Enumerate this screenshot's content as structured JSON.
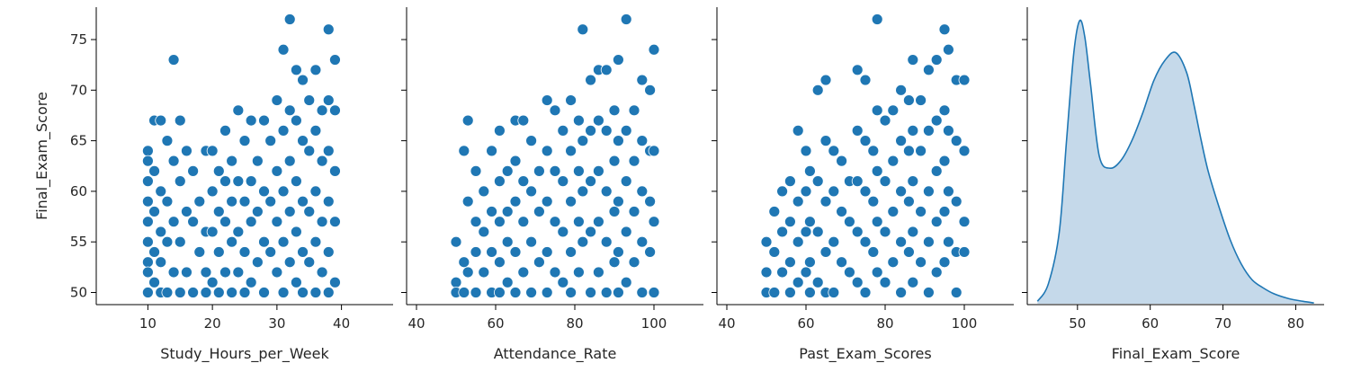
{
  "chart_data": [
    {
      "type": "scatter",
      "xlabel": "Study_Hours_per_Week",
      "ylabel": "Final_Exam_Score",
      "xlim": [
        2,
        48
      ],
      "ylim": [
        48.8,
        78.2
      ],
      "x_ticks": [
        10,
        20,
        30,
        40
      ],
      "y_ticks": [
        50,
        55,
        60,
        65,
        70,
        75
      ],
      "color": "#1f77b4",
      "points": [
        [
          10,
          64
        ],
        [
          10,
          63
        ],
        [
          10,
          61
        ],
        [
          10,
          59
        ],
        [
          10,
          57
        ],
        [
          10,
          55
        ],
        [
          10,
          53
        ],
        [
          10,
          52
        ],
        [
          10,
          50
        ],
        [
          11,
          67
        ],
        [
          11,
          62
        ],
        [
          11,
          58
        ],
        [
          11,
          54
        ],
        [
          11,
          51
        ],
        [
          12,
          67
        ],
        [
          12,
          60
        ],
        [
          12,
          56
        ],
        [
          12,
          53
        ],
        [
          12,
          50
        ],
        [
          13,
          65
        ],
        [
          13,
          59
        ],
        [
          13,
          55
        ],
        [
          13,
          50
        ],
        [
          14,
          73
        ],
        [
          14,
          63
        ],
        [
          14,
          57
        ],
        [
          14,
          52
        ],
        [
          15,
          67
        ],
        [
          15,
          61
        ],
        [
          15,
          55
        ],
        [
          15,
          50
        ],
        [
          16,
          64
        ],
        [
          16,
          58
        ],
        [
          16,
          52
        ],
        [
          17,
          62
        ],
        [
          17,
          57
        ],
        [
          17,
          50
        ],
        [
          18,
          59
        ],
        [
          18,
          54
        ],
        [
          19,
          64
        ],
        [
          19,
          56
        ],
        [
          19,
          52
        ],
        [
          19,
          50
        ],
        [
          20,
          64
        ],
        [
          20,
          60
        ],
        [
          20,
          56
        ],
        [
          20,
          51
        ],
        [
          21,
          62
        ],
        [
          21,
          58
        ],
        [
          21,
          54
        ],
        [
          21,
          50
        ],
        [
          22,
          66
        ],
        [
          22,
          61
        ],
        [
          22,
          57
        ],
        [
          22,
          52
        ],
        [
          23,
          63
        ],
        [
          23,
          59
        ],
        [
          23,
          55
        ],
        [
          23,
          50
        ],
        [
          24,
          68
        ],
        [
          24,
          61
        ],
        [
          24,
          56
        ],
        [
          24,
          52
        ],
        [
          25,
          65
        ],
        [
          25,
          59
        ],
        [
          25,
          54
        ],
        [
          25,
          50
        ],
        [
          26,
          67
        ],
        [
          26,
          61
        ],
        [
          26,
          57
        ],
        [
          26,
          51
        ],
        [
          27,
          63
        ],
        [
          27,
          58
        ],
        [
          27,
          53
        ],
        [
          28,
          67
        ],
        [
          28,
          60
        ],
        [
          28,
          55
        ],
        [
          28,
          50
        ],
        [
          29,
          65
        ],
        [
          29,
          59
        ],
        [
          29,
          54
        ],
        [
          30,
          69
        ],
        [
          30,
          62
        ],
        [
          30,
          57
        ],
        [
          30,
          52
        ],
        [
          31,
          74
        ],
        [
          31,
          66
        ],
        [
          31,
          60
        ],
        [
          31,
          55
        ],
        [
          31,
          50
        ],
        [
          32,
          77
        ],
        [
          32,
          68
        ],
        [
          32,
          63
        ],
        [
          32,
          58
        ],
        [
          32,
          53
        ],
        [
          33,
          72
        ],
        [
          33,
          67
        ],
        [
          33,
          61
        ],
        [
          33,
          56
        ],
        [
          33,
          51
        ],
        [
          34,
          71
        ],
        [
          34,
          65
        ],
        [
          34,
          59
        ],
        [
          34,
          54
        ],
        [
          34,
          50
        ],
        [
          35,
          69
        ],
        [
          35,
          64
        ],
        [
          35,
          58
        ],
        [
          35,
          53
        ],
        [
          36,
          72
        ],
        [
          36,
          66
        ],
        [
          36,
          60
        ],
        [
          36,
          55
        ],
        [
          36,
          50
        ],
        [
          37,
          68
        ],
        [
          37,
          63
        ],
        [
          37,
          57
        ],
        [
          37,
          52
        ],
        [
          38,
          76
        ],
        [
          38,
          69
        ],
        [
          38,
          64
        ],
        [
          38,
          59
        ],
        [
          38,
          54
        ],
        [
          38,
          50
        ],
        [
          39,
          73
        ],
        [
          39,
          68
        ],
        [
          39,
          62
        ],
        [
          39,
          57
        ],
        [
          39,
          51
        ]
      ]
    },
    {
      "type": "scatter",
      "xlabel": "Attendance_Rate",
      "xlim": [
        37.5,
        112.5
      ],
      "ylim": [
        48.8,
        78.2
      ],
      "x_ticks": [
        40,
        60,
        80,
        100
      ],
      "color": "#1f77b4",
      "points": [
        [
          50,
          55
        ],
        [
          50,
          51
        ],
        [
          50,
          50
        ],
        [
          52,
          64
        ],
        [
          52,
          53
        ],
        [
          52,
          50
        ],
        [
          53,
          67
        ],
        [
          53,
          59
        ],
        [
          53,
          52
        ],
        [
          55,
          62
        ],
        [
          55,
          57
        ],
        [
          55,
          54
        ],
        [
          55,
          50
        ],
        [
          57,
          60
        ],
        [
          57,
          56
        ],
        [
          57,
          52
        ],
        [
          59,
          64
        ],
        [
          59,
          58
        ],
        [
          59,
          54
        ],
        [
          59,
          50
        ],
        [
          61,
          66
        ],
        [
          61,
          61
        ],
        [
          61,
          57
        ],
        [
          61,
          53
        ],
        [
          61,
          50
        ],
        [
          63,
          62
        ],
        [
          63,
          58
        ],
        [
          63,
          55
        ],
        [
          63,
          51
        ],
        [
          65,
          67
        ],
        [
          65,
          63
        ],
        [
          65,
          59
        ],
        [
          65,
          54
        ],
        [
          65,
          50
        ],
        [
          67,
          67
        ],
        [
          67,
          61
        ],
        [
          67,
          57
        ],
        [
          67,
          52
        ],
        [
          69,
          65
        ],
        [
          69,
          60
        ],
        [
          69,
          55
        ],
        [
          69,
          50
        ],
        [
          71,
          62
        ],
        [
          71,
          58
        ],
        [
          71,
          53
        ],
        [
          73,
          69
        ],
        [
          73,
          64
        ],
        [
          73,
          59
        ],
        [
          73,
          54
        ],
        [
          73,
          50
        ],
        [
          75,
          68
        ],
        [
          75,
          62
        ],
        [
          75,
          57
        ],
        [
          75,
          52
        ],
        [
          77,
          66
        ],
        [
          77,
          61
        ],
        [
          77,
          56
        ],
        [
          77,
          51
        ],
        [
          79,
          69
        ],
        [
          79,
          64
        ],
        [
          79,
          59
        ],
        [
          79,
          54
        ],
        [
          79,
          50
        ],
        [
          81,
          67
        ],
        [
          81,
          62
        ],
        [
          81,
          57
        ],
        [
          81,
          52
        ],
        [
          82,
          76
        ],
        [
          82,
          65
        ],
        [
          82,
          60
        ],
        [
          82,
          55
        ],
        [
          84,
          71
        ],
        [
          84,
          66
        ],
        [
          84,
          61
        ],
        [
          84,
          56
        ],
        [
          84,
          50
        ],
        [
          86,
          72
        ],
        [
          86,
          67
        ],
        [
          86,
          62
        ],
        [
          86,
          57
        ],
        [
          86,
          52
        ],
        [
          88,
          72
        ],
        [
          88,
          66
        ],
        [
          88,
          60
        ],
        [
          88,
          55
        ],
        [
          88,
          50
        ],
        [
          90,
          68
        ],
        [
          90,
          63
        ],
        [
          90,
          58
        ],
        [
          90,
          53
        ],
        [
          91,
          73
        ],
        [
          91,
          65
        ],
        [
          91,
          59
        ],
        [
          91,
          54
        ],
        [
          91,
          50
        ],
        [
          93,
          77
        ],
        [
          93,
          66
        ],
        [
          93,
          61
        ],
        [
          93,
          56
        ],
        [
          93,
          51
        ],
        [
          95,
          68
        ],
        [
          95,
          63
        ],
        [
          95,
          58
        ],
        [
          95,
          53
        ],
        [
          97,
          71
        ],
        [
          97,
          65
        ],
        [
          97,
          60
        ],
        [
          97,
          55
        ],
        [
          97,
          50
        ],
        [
          99,
          70
        ],
        [
          99,
          64
        ],
        [
          99,
          59
        ],
        [
          99,
          54
        ],
        [
          100,
          74
        ],
        [
          100,
          64
        ],
        [
          100,
          57
        ],
        [
          100,
          50
        ]
      ]
    },
    {
      "type": "scatter",
      "xlabel": "Past_Exam_Scores",
      "xlim": [
        37.5,
        112.5
      ],
      "ylim": [
        48.8,
        78.2
      ],
      "x_ticks": [
        40,
        60,
        80,
        100
      ],
      "color": "#1f77b4",
      "points": [
        [
          50,
          55
        ],
        [
          50,
          52
        ],
        [
          50,
          50
        ],
        [
          52,
          58
        ],
        [
          52,
          54
        ],
        [
          52,
          50
        ],
        [
          54,
          60
        ],
        [
          54,
          56
        ],
        [
          54,
          52
        ],
        [
          56,
          61
        ],
        [
          56,
          57
        ],
        [
          56,
          53
        ],
        [
          56,
          50
        ],
        [
          58,
          66
        ],
        [
          58,
          59
        ],
        [
          58,
          55
        ],
        [
          58,
          51
        ],
        [
          60,
          64
        ],
        [
          60,
          60
        ],
        [
          60,
          56
        ],
        [
          60,
          52
        ],
        [
          61,
          62
        ],
        [
          61,
          57
        ],
        [
          61,
          53
        ],
        [
          61,
          50
        ],
        [
          63,
          70
        ],
        [
          63,
          61
        ],
        [
          63,
          56
        ],
        [
          63,
          51
        ],
        [
          65,
          71
        ],
        [
          65,
          65
        ],
        [
          65,
          59
        ],
        [
          65,
          54
        ],
        [
          65,
          50
        ],
        [
          67,
          64
        ],
        [
          67,
          60
        ],
        [
          67,
          55
        ],
        [
          67,
          50
        ],
        [
          69,
          63
        ],
        [
          69,
          58
        ],
        [
          69,
          53
        ],
        [
          71,
          61
        ],
        [
          71,
          57
        ],
        [
          71,
          52
        ],
        [
          73,
          72
        ],
        [
          73,
          66
        ],
        [
          73,
          61
        ],
        [
          73,
          56
        ],
        [
          73,
          51
        ],
        [
          75,
          71
        ],
        [
          75,
          65
        ],
        [
          75,
          60
        ],
        [
          75,
          55
        ],
        [
          75,
          50
        ],
        [
          77,
          64
        ],
        [
          77,
          59
        ],
        [
          77,
          54
        ],
        [
          78,
          77
        ],
        [
          78,
          68
        ],
        [
          78,
          62
        ],
        [
          78,
          57
        ],
        [
          78,
          52
        ],
        [
          80,
          67
        ],
        [
          80,
          61
        ],
        [
          80,
          56
        ],
        [
          80,
          51
        ],
        [
          82,
          68
        ],
        [
          82,
          63
        ],
        [
          82,
          58
        ],
        [
          82,
          53
        ],
        [
          84,
          70
        ],
        [
          84,
          65
        ],
        [
          84,
          60
        ],
        [
          84,
          55
        ],
        [
          84,
          50
        ],
        [
          86,
          69
        ],
        [
          86,
          64
        ],
        [
          86,
          59
        ],
        [
          86,
          54
        ],
        [
          87,
          73
        ],
        [
          87,
          66
        ],
        [
          87,
          61
        ],
        [
          87,
          56
        ],
        [
          87,
          51
        ],
        [
          89,
          69
        ],
        [
          89,
          64
        ],
        [
          89,
          58
        ],
        [
          89,
          53
        ],
        [
          91,
          72
        ],
        [
          91,
          66
        ],
        [
          91,
          60
        ],
        [
          91,
          55
        ],
        [
          91,
          50
        ],
        [
          93,
          73
        ],
        [
          93,
          67
        ],
        [
          93,
          62
        ],
        [
          93,
          57
        ],
        [
          93,
          52
        ],
        [
          95,
          76
        ],
        [
          95,
          68
        ],
        [
          95,
          63
        ],
        [
          95,
          58
        ],
        [
          95,
          53
        ],
        [
          96,
          74
        ],
        [
          96,
          66
        ],
        [
          96,
          60
        ],
        [
          96,
          55
        ],
        [
          98,
          71
        ],
        [
          98,
          65
        ],
        [
          98,
          59
        ],
        [
          98,
          54
        ],
        [
          98,
          50
        ],
        [
          100,
          71
        ],
        [
          100,
          64
        ],
        [
          100,
          57
        ],
        [
          100,
          54
        ]
      ]
    },
    {
      "type": "area",
      "xlabel": "Final_Exam_Score",
      "xlim": [
        43.1,
        83.9
      ],
      "x_ticks": [
        50,
        60,
        70,
        80
      ],
      "color": "#1f77b4",
      "fill_color": "#c5d9ea",
      "x": [
        44.5,
        46,
        47.5,
        48.5,
        49.5,
        50.3,
        51,
        51.8,
        53,
        54.5,
        56,
        57.5,
        59,
        60.5,
        62,
        63.5,
        65,
        66,
        67,
        68,
        69.5,
        71,
        72.5,
        74,
        75.5,
        77,
        79,
        81,
        82.5
      ],
      "density": [
        0.0006,
        0.005,
        0.018,
        0.041,
        0.063,
        0.071,
        0.067,
        0.055,
        0.037,
        0.034,
        0.036,
        0.041,
        0.048,
        0.056,
        0.061,
        0.063,
        0.058,
        0.05,
        0.041,
        0.033,
        0.024,
        0.016,
        0.01,
        0.006,
        0.004,
        0.0025,
        0.0013,
        0.0006,
        0.0002
      ]
    }
  ]
}
